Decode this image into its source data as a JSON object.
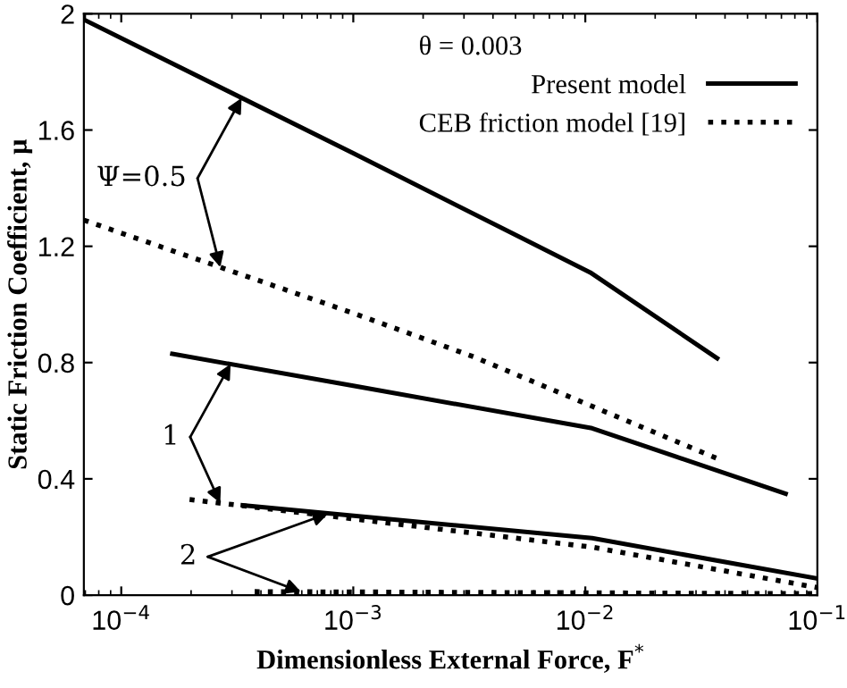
{
  "chart_data": {
    "type": "line",
    "xlabel": "Dimensionless External Force, F$^{*}$",
    "ylabel": "Static Friction Coefficient, μ",
    "legend_title": "θ = 0.003",
    "legend": "top right",
    "log": "x",
    "xlim": [
      6.9e-05,
      0.1
    ],
    "xticks": [
      {
        "value": 0.0001,
        "label": "10$^{−4}$"
      },
      {
        "value": 0.001,
        "label": "10$^{−3}$"
      },
      {
        "value": 0.01,
        "label": "10$^{−2}$"
      },
      {
        "value": 0.1,
        "label": "10$^{−1}$"
      }
    ],
    "ylim": [
      0,
      2
    ],
    "yticks": [
      0,
      0.4,
      0.8,
      1.2,
      1.6,
      2
    ],
    "grid": false,
    "marker": "none",
    "series": [
      {
        "name": "Present model",
        "color": "#000000",
        "line_style": "solid",
        "x": [
          6.9e-05,
          0.001,
          0.0105,
          0.037
        ],
        "values": [
          1.98,
          1.52,
          1.11,
          0.815
        ]
      },
      {
        "name": "CEB friction model [19]",
        "color": "#000000",
        "line_style": "dotted",
        "x": [
          6.9e-05,
          0.001,
          0.0033,
          0.037
        ],
        "values": [
          1.29,
          0.97,
          0.82,
          0.47
        ]
      },
      {
        "color": "#000000",
        "line_style": "solid",
        "x": [
          0.000166,
          0.001,
          0.0107,
          0.073
        ],
        "values": [
          0.83,
          0.72,
          0.574,
          0.349
        ]
      },
      {
        "color": "#000000",
        "line_style": "dotted",
        "x": [
          0.000197,
          0.0107,
          0.1
        ],
        "values": [
          0.329,
          0.165,
          0.026
        ]
      },
      {
        "color": "#000000",
        "line_style": "solid",
        "x": [
          0.000334,
          0.0107,
          0.1
        ],
        "values": [
          0.309,
          0.196,
          0.057
        ]
      },
      {
        "color": "#000000",
        "line_style": "dotted",
        "x": [
          0.000376,
          0.1
        ],
        "values": [
          0.012,
          0.005
        ]
      }
    ],
    "annotations": [
      {
        "text": "Ψ=0.5",
        "x": 0.00033,
        "y": 1.71
      },
      {
        "text": "1",
        "x": 0.000296,
        "y": 0.795
      },
      {
        "text": "2",
        "x": 0.00078,
        "y": 0.281
      }
    ]
  }
}
